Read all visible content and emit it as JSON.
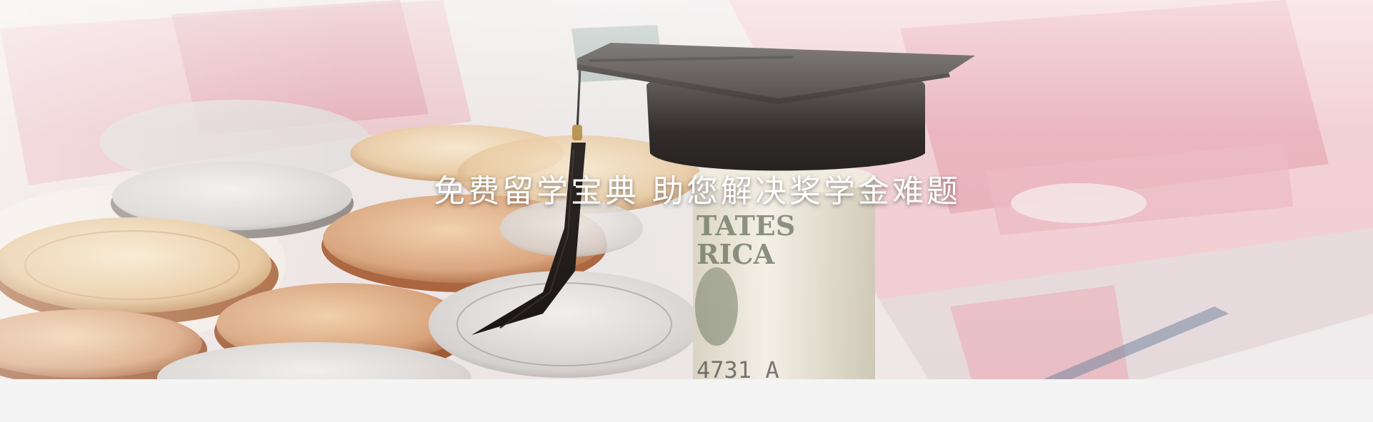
{
  "banner": {
    "title": "免费留学宝典  助您解决奖学金难题",
    "image_icon": "scholarship-money-graduation-cap"
  },
  "colors": {
    "page_background": "#f4f4f4",
    "title_text": "#ffffff",
    "cap": "#1c1714",
    "banknote_pink": "#e8a8b0",
    "coin_copper": "#c98e62",
    "coin_silver": "#d6d2cf"
  }
}
